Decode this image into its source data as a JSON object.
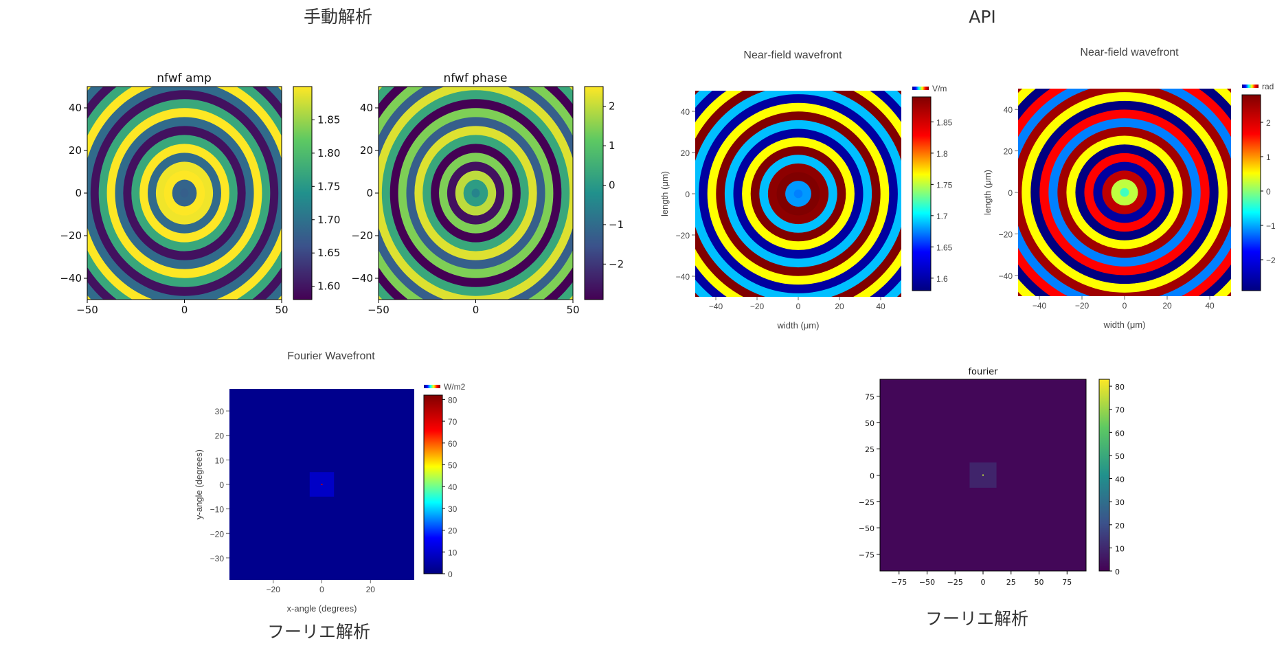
{
  "sections": {
    "manual": "手動解析",
    "api": "API",
    "fourier_left": "フーリエ解析",
    "fourier_right": "フーリエ解析"
  },
  "chart_data": [
    {
      "id": "nfwf-amp",
      "type": "heatmap",
      "style": "matplotlib",
      "colormap": "viridis",
      "pattern": "rings",
      "title": "nfwf amp",
      "xlabel": "",
      "ylabel": "",
      "xlim": [
        -50,
        50
      ],
      "ylim": [
        -50,
        50
      ],
      "xticks": [
        "−50",
        "0",
        "50"
      ],
      "yticks": [
        "40",
        "20",
        "0",
        "−20",
        "−40"
      ],
      "ytick_values": [
        40,
        20,
        0,
        -20,
        -40
      ],
      "xtick_values": [
        -50,
        0,
        50
      ],
      "zlim": [
        1.58,
        1.9
      ],
      "colorbar_ticks": [
        "1.85",
        "1.80",
        "1.75",
        "1.70",
        "1.65",
        "1.60"
      ],
      "colorbar_values": [
        1.85,
        1.8,
        1.75,
        1.7,
        1.65,
        1.6
      ]
    },
    {
      "id": "nfwf-phase",
      "type": "heatmap",
      "style": "matplotlib",
      "colormap": "viridis",
      "pattern": "rings",
      "title": "nfwf phase",
      "xlabel": "",
      "ylabel": "",
      "xlim": [
        -50,
        50
      ],
      "ylim": [
        -50,
        50
      ],
      "xticks": [
        "−50",
        "0",
        "50"
      ],
      "yticks": [
        "40",
        "20",
        "0",
        "−20",
        "−40"
      ],
      "ytick_values": [
        40,
        20,
        0,
        -20,
        -40
      ],
      "xtick_values": [
        -50,
        0,
        50
      ],
      "zlim": [
        -2.9,
        2.5
      ],
      "colorbar_ticks": [
        "2",
        "1",
        "0",
        "−1",
        "−2"
      ],
      "colorbar_values": [
        2,
        1,
        0,
        -1,
        -2
      ]
    },
    {
      "id": "nearfield-amp",
      "type": "heatmap",
      "style": "plotly",
      "colormap": "jet",
      "pattern": "rings",
      "title": "Near-field wavefront",
      "xlabel": "width (μm)",
      "ylabel": "length (μm)",
      "xlim": [
        -50,
        50
      ],
      "ylim": [
        -50,
        50
      ],
      "xticks": [
        "−40",
        "−20",
        "0",
        "20",
        "40"
      ],
      "xtick_values": [
        -40,
        -20,
        0,
        20,
        40
      ],
      "yticks": [
        "40",
        "20",
        "0",
        "−20",
        "−40"
      ],
      "ytick_values": [
        40,
        20,
        0,
        -20,
        -40
      ],
      "zlim": [
        1.58,
        1.89
      ],
      "colorbar_title": "V/m",
      "colorbar_ticks": [
        "1.85",
        "1.8",
        "1.75",
        "1.7",
        "1.65",
        "1.6"
      ],
      "colorbar_values": [
        1.85,
        1.8,
        1.75,
        1.7,
        1.65,
        1.6
      ]
    },
    {
      "id": "nearfield-phase",
      "type": "heatmap",
      "style": "plotly",
      "colormap": "jet",
      "pattern": "rings",
      "title": "Near-field wavefront",
      "xlabel": "width (μm)",
      "ylabel": "length (μm)",
      "xlim": [
        -50,
        50
      ],
      "ylim": [
        -50,
        50
      ],
      "xticks": [
        "−40",
        "−20",
        "0",
        "20",
        "40"
      ],
      "xtick_values": [
        -40,
        -20,
        0,
        20,
        40
      ],
      "yticks": [
        "40",
        "20",
        "0",
        "−20",
        "−40"
      ],
      "ytick_values": [
        40,
        20,
        0,
        -20,
        -40
      ],
      "zlim": [
        -2.9,
        2.8
      ],
      "colorbar_title": "rad",
      "colorbar_ticks": [
        "2",
        "1",
        "0",
        "−1",
        "−2"
      ],
      "colorbar_values": [
        2,
        1,
        0,
        -1,
        -2
      ]
    },
    {
      "id": "fourier-api",
      "type": "heatmap",
      "style": "plotly",
      "colormap": "jet",
      "pattern": "square",
      "title": "Fourier Wavefront",
      "xlabel": "x-angle (degrees)",
      "ylabel": "y-angle (degrees)",
      "xlim": [
        -38,
        38
      ],
      "ylim": [
        -39,
        39
      ],
      "xticks": [
        "−20",
        "0",
        "20"
      ],
      "xtick_values": [
        -20,
        0,
        20
      ],
      "yticks": [
        "30",
        "20",
        "10",
        "0",
        "−10",
        "−20",
        "−30"
      ],
      "ytick_values": [
        30,
        20,
        10,
        0,
        -10,
        -20,
        -30
      ],
      "zlim": [
        0,
        82
      ],
      "colorbar_title": "W/m2",
      "colorbar_ticks": [
        "80",
        "70",
        "60",
        "50",
        "40",
        "30",
        "20",
        "10",
        "0"
      ],
      "colorbar_values": [
        80,
        70,
        60,
        50,
        40,
        30,
        20,
        10,
        0
      ]
    },
    {
      "id": "fourier-manual",
      "type": "heatmap",
      "style": "matplotlib",
      "colormap": "viridis",
      "pattern": "square",
      "title": "fourier",
      "xlabel": "",
      "ylabel": "",
      "xlim": [
        -92,
        92
      ],
      "ylim": [
        -91,
        91
      ],
      "xticks": [
        "−75",
        "−50",
        "−25",
        "0",
        "25",
        "50",
        "75"
      ],
      "xtick_values": [
        -75,
        -50,
        -25,
        0,
        25,
        50,
        75
      ],
      "yticks": [
        "75",
        "50",
        "25",
        "0",
        "−25",
        "−50",
        "−75"
      ],
      "ytick_values": [
        75,
        50,
        25,
        0,
        -25,
        -50,
        -75
      ],
      "zlim": [
        0,
        83
      ],
      "colorbar_ticks": [
        "80",
        "70",
        "60",
        "50",
        "40",
        "30",
        "20",
        "10",
        "0"
      ],
      "colorbar_values": [
        80,
        70,
        60,
        50,
        40,
        30,
        20,
        10,
        0
      ]
    }
  ]
}
